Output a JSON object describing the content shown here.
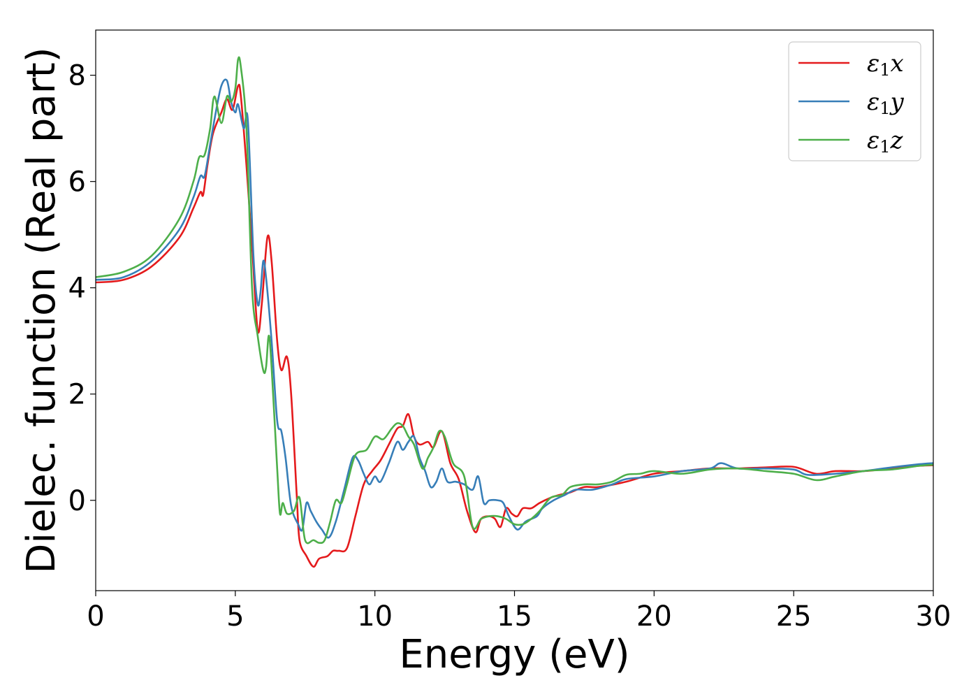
{
  "chart_data": {
    "type": "line",
    "title": "",
    "xlabel": "Energy (eV)",
    "ylabel": "Dielec. function (Real part)",
    "xlim": [
      0,
      30
    ],
    "ylim": [
      -1.7,
      8.85
    ],
    "xticks": [
      0,
      5,
      10,
      15,
      20,
      25,
      30
    ],
    "yticks": [
      0,
      2,
      4,
      6,
      8
    ],
    "grid": false,
    "legend_position": "top-right",
    "series": [
      {
        "name": "ε1x",
        "legend_base": "ε",
        "legend_sub": "1",
        "legend_tail": "x",
        "color": "#e41a1c",
        "points": [
          [
            0,
            4.1
          ],
          [
            1,
            4.15
          ],
          [
            2,
            4.4
          ],
          [
            3,
            4.95
          ],
          [
            3.5,
            5.5
          ],
          [
            3.75,
            5.8
          ],
          [
            3.85,
            5.75
          ],
          [
            4.0,
            6.3
          ],
          [
            4.2,
            6.9
          ],
          [
            4.5,
            7.3
          ],
          [
            4.7,
            7.55
          ],
          [
            4.9,
            7.35
          ],
          [
            5.1,
            7.8
          ],
          [
            5.2,
            7.6
          ],
          [
            5.4,
            6.3
          ],
          [
            5.6,
            4.8
          ],
          [
            5.8,
            3.2
          ],
          [
            5.95,
            3.7
          ],
          [
            6.15,
            4.95
          ],
          [
            6.3,
            4.5
          ],
          [
            6.5,
            3.0
          ],
          [
            6.65,
            2.45
          ],
          [
            6.85,
            2.7
          ],
          [
            7.0,
            2.0
          ],
          [
            7.2,
            0.1
          ],
          [
            7.3,
            -0.75
          ],
          [
            7.55,
            -1.05
          ],
          [
            7.8,
            -1.25
          ],
          [
            8.0,
            -1.1
          ],
          [
            8.3,
            -1.05
          ],
          [
            8.5,
            -0.95
          ],
          [
            8.7,
            -0.95
          ],
          [
            9.0,
            -0.9
          ],
          [
            9.3,
            -0.3
          ],
          [
            9.6,
            0.3
          ],
          [
            9.9,
            0.55
          ],
          [
            10.2,
            0.75
          ],
          [
            10.5,
            1.05
          ],
          [
            10.8,
            1.35
          ],
          [
            11.0,
            1.4
          ],
          [
            11.2,
            1.62
          ],
          [
            11.4,
            1.2
          ],
          [
            11.6,
            1.05
          ],
          [
            11.9,
            1.1
          ],
          [
            12.1,
            1.0
          ],
          [
            12.4,
            1.3
          ],
          [
            12.7,
            0.7
          ],
          [
            13.0,
            0.4
          ],
          [
            13.3,
            -0.2
          ],
          [
            13.6,
            -0.6
          ],
          [
            13.8,
            -0.35
          ],
          [
            14.1,
            -0.3
          ],
          [
            14.3,
            -0.35
          ],
          [
            14.5,
            -0.5
          ],
          [
            14.7,
            -0.15
          ],
          [
            14.9,
            -0.25
          ],
          [
            15.1,
            -0.3
          ],
          [
            15.3,
            -0.15
          ],
          [
            15.6,
            -0.15
          ],
          [
            15.9,
            -0.05
          ],
          [
            16.3,
            0.05
          ],
          [
            16.6,
            0.1
          ],
          [
            17.0,
            0.15
          ],
          [
            17.5,
            0.25
          ],
          [
            18.0,
            0.25
          ],
          [
            19.0,
            0.35
          ],
          [
            20.0,
            0.5
          ],
          [
            21.0,
            0.55
          ],
          [
            22.0,
            0.6
          ],
          [
            23.0,
            0.6
          ],
          [
            24.0,
            0.62
          ],
          [
            25.0,
            0.63
          ],
          [
            25.8,
            0.5
          ],
          [
            26.5,
            0.55
          ],
          [
            27.5,
            0.55
          ],
          [
            28.5,
            0.6
          ],
          [
            29.5,
            0.65
          ],
          [
            30,
            0.66
          ]
        ]
      },
      {
        "name": "ε1y",
        "legend_base": "ε",
        "legend_sub": "1",
        "legend_tail": "y",
        "color": "#377eb8",
        "points": [
          [
            0,
            4.15
          ],
          [
            1,
            4.2
          ],
          [
            2,
            4.5
          ],
          [
            3,
            5.1
          ],
          [
            3.5,
            5.7
          ],
          [
            3.75,
            6.1
          ],
          [
            3.9,
            6.1
          ],
          [
            4.1,
            6.7
          ],
          [
            4.3,
            7.3
          ],
          [
            4.5,
            7.8
          ],
          [
            4.7,
            7.9
          ],
          [
            4.85,
            7.5
          ],
          [
            5.0,
            7.3
          ],
          [
            5.1,
            7.45
          ],
          [
            5.3,
            7.0
          ],
          [
            5.45,
            7.15
          ],
          [
            5.65,
            4.6
          ],
          [
            5.8,
            3.7
          ],
          [
            5.9,
            3.9
          ],
          [
            6.0,
            4.5
          ],
          [
            6.1,
            4.2
          ],
          [
            6.3,
            3.0
          ],
          [
            6.5,
            1.5
          ],
          [
            6.65,
            1.3
          ],
          [
            6.8,
            0.8
          ],
          [
            7.0,
            -0.1
          ],
          [
            7.25,
            -0.45
          ],
          [
            7.4,
            -0.55
          ],
          [
            7.55,
            -0.05
          ],
          [
            7.7,
            -0.2
          ],
          [
            7.9,
            -0.4
          ],
          [
            8.1,
            -0.55
          ],
          [
            8.35,
            -0.7
          ],
          [
            8.6,
            -0.4
          ],
          [
            8.9,
            0.2
          ],
          [
            9.2,
            0.8
          ],
          [
            9.4,
            0.75
          ],
          [
            9.6,
            0.5
          ],
          [
            9.8,
            0.3
          ],
          [
            10.0,
            0.45
          ],
          [
            10.2,
            0.35
          ],
          [
            10.5,
            0.7
          ],
          [
            10.8,
            1.1
          ],
          [
            11.0,
            0.95
          ],
          [
            11.2,
            1.1
          ],
          [
            11.4,
            1.2
          ],
          [
            11.6,
            0.8
          ],
          [
            11.8,
            0.55
          ],
          [
            12.0,
            0.25
          ],
          [
            12.2,
            0.35
          ],
          [
            12.4,
            0.6
          ],
          [
            12.6,
            0.35
          ],
          [
            12.9,
            0.35
          ],
          [
            13.2,
            0.3
          ],
          [
            13.5,
            0.2
          ],
          [
            13.7,
            0.45
          ],
          [
            13.9,
            -0.05
          ],
          [
            14.1,
            0.0
          ],
          [
            14.4,
            0.0
          ],
          [
            14.6,
            -0.05
          ],
          [
            14.8,
            -0.3
          ],
          [
            15.1,
            -0.55
          ],
          [
            15.4,
            -0.4
          ],
          [
            15.8,
            -0.3
          ],
          [
            16.0,
            -0.15
          ],
          [
            16.4,
            0.0
          ],
          [
            16.8,
            0.1
          ],
          [
            17.2,
            0.2
          ],
          [
            17.8,
            0.2
          ],
          [
            18.5,
            0.3
          ],
          [
            19.0,
            0.4
          ],
          [
            20.0,
            0.45
          ],
          [
            21.0,
            0.55
          ],
          [
            22.0,
            0.6
          ],
          [
            22.4,
            0.7
          ],
          [
            23.0,
            0.6
          ],
          [
            24.0,
            0.6
          ],
          [
            25.0,
            0.58
          ],
          [
            25.5,
            0.48
          ],
          [
            26.5,
            0.5
          ],
          [
            27.5,
            0.55
          ],
          [
            28.5,
            0.62
          ],
          [
            29.5,
            0.68
          ],
          [
            30,
            0.7
          ]
        ]
      },
      {
        "name": "ε1z",
        "legend_base": "ε",
        "legend_sub": "1",
        "legend_tail": "z",
        "color": "#4daf4a",
        "points": [
          [
            0,
            4.2
          ],
          [
            1,
            4.3
          ],
          [
            2,
            4.6
          ],
          [
            3,
            5.3
          ],
          [
            3.5,
            6.0
          ],
          [
            3.7,
            6.45
          ],
          [
            3.9,
            6.5
          ],
          [
            4.1,
            7.0
          ],
          [
            4.25,
            7.6
          ],
          [
            4.5,
            7.1
          ],
          [
            4.7,
            7.6
          ],
          [
            4.85,
            7.5
          ],
          [
            5.0,
            7.75
          ],
          [
            5.1,
            8.3
          ],
          [
            5.2,
            8.15
          ],
          [
            5.4,
            7.0
          ],
          [
            5.6,
            4.0
          ],
          [
            5.8,
            3.1
          ],
          [
            6.0,
            2.45
          ],
          [
            6.1,
            2.5
          ],
          [
            6.2,
            3.1
          ],
          [
            6.3,
            2.5
          ],
          [
            6.5,
            0.6
          ],
          [
            6.6,
            -0.25
          ],
          [
            6.7,
            -0.05
          ],
          [
            6.85,
            -0.25
          ],
          [
            7.1,
            -0.2
          ],
          [
            7.3,
            0.05
          ],
          [
            7.5,
            -0.75
          ],
          [
            7.8,
            -0.75
          ],
          [
            8.0,
            -0.8
          ],
          [
            8.2,
            -0.75
          ],
          [
            8.4,
            -0.4
          ],
          [
            8.6,
            0.0
          ],
          [
            8.8,
            -0.05
          ],
          [
            9.0,
            0.3
          ],
          [
            9.3,
            0.85
          ],
          [
            9.7,
            0.95
          ],
          [
            10.0,
            1.2
          ],
          [
            10.3,
            1.15
          ],
          [
            10.6,
            1.35
          ],
          [
            10.8,
            1.45
          ],
          [
            11.0,
            1.4
          ],
          [
            11.2,
            1.2
          ],
          [
            11.4,
            1.05
          ],
          [
            11.7,
            0.6
          ],
          [
            11.9,
            0.8
          ],
          [
            12.1,
            1.0
          ],
          [
            12.3,
            1.3
          ],
          [
            12.5,
            1.2
          ],
          [
            12.8,
            0.7
          ],
          [
            13.2,
            0.45
          ],
          [
            13.5,
            -0.5
          ],
          [
            13.8,
            -0.35
          ],
          [
            14.1,
            -0.3
          ],
          [
            14.4,
            -0.3
          ],
          [
            14.7,
            -0.35
          ],
          [
            15.0,
            -0.45
          ],
          [
            15.3,
            -0.45
          ],
          [
            15.6,
            -0.35
          ],
          [
            15.9,
            -0.2
          ],
          [
            16.3,
            0.05
          ],
          [
            16.7,
            0.1
          ],
          [
            17.0,
            0.25
          ],
          [
            17.5,
            0.3
          ],
          [
            18.0,
            0.3
          ],
          [
            18.5,
            0.35
          ],
          [
            19.0,
            0.48
          ],
          [
            19.5,
            0.5
          ],
          [
            20.0,
            0.55
          ],
          [
            21.0,
            0.5
          ],
          [
            22.0,
            0.58
          ],
          [
            23.0,
            0.6
          ],
          [
            24.0,
            0.55
          ],
          [
            25.0,
            0.5
          ],
          [
            25.8,
            0.38
          ],
          [
            26.5,
            0.45
          ],
          [
            27.5,
            0.55
          ],
          [
            28.5,
            0.58
          ],
          [
            29.5,
            0.65
          ],
          [
            30,
            0.67
          ]
        ]
      }
    ]
  }
}
